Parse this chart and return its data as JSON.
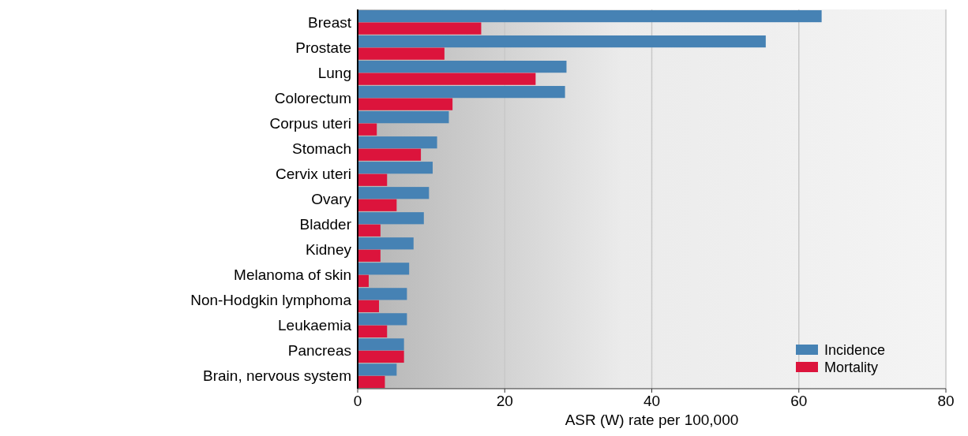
{
  "chart_data": {
    "type": "bar",
    "orientation": "horizontal",
    "xlabel": "ASR (W) rate per 100,000",
    "categories": [
      "Breast",
      "Prostate",
      "Lung",
      "Colorectum",
      "Corpus uteri",
      "Stomach",
      "Cervix uteri",
      "Ovary",
      "Bladder",
      "Kidney",
      "Melanoma of skin",
      "Non-Hodgkin lymphoma",
      "Leukaemia",
      "Pancreas",
      "Brain, nervous system"
    ],
    "series": [
      {
        "name": "Incidence",
        "color": "#4682b4",
        "values": [
          63.1,
          55.5,
          28.4,
          28.2,
          12.4,
          10.8,
          10.2,
          9.7,
          9.0,
          7.6,
          7.0,
          6.7,
          6.7,
          6.3,
          5.3
        ]
      },
      {
        "name": "Mortality",
        "color": "#dc143c",
        "values": [
          16.8,
          11.8,
          24.2,
          12.9,
          2.6,
          8.6,
          4.0,
          5.3,
          3.1,
          3.1,
          1.5,
          2.9,
          4.0,
          6.3,
          3.7
        ]
      }
    ],
    "xlim": [
      0,
      80
    ],
    "xticks": [
      0,
      20,
      40,
      60,
      80
    ],
    "grid": "x",
    "legend": "bottom right"
  }
}
